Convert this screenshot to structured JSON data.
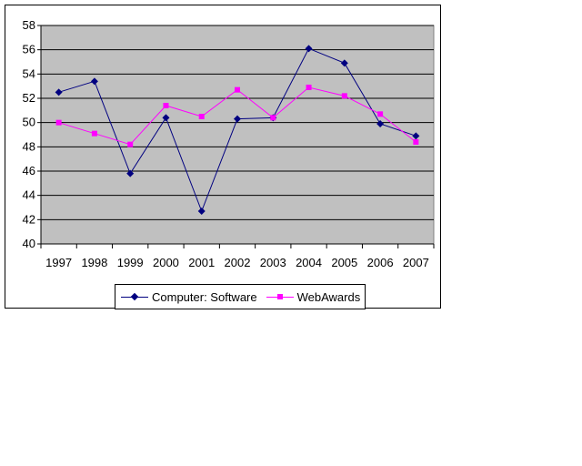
{
  "chart_data": {
    "type": "line",
    "categories": [
      "1997",
      "1998",
      "1999",
      "2000",
      "2001",
      "2002",
      "2003",
      "2004",
      "2005",
      "2006",
      "2007"
    ],
    "ylim": [
      40,
      58
    ],
    "yticks": [
      40,
      42,
      44,
      46,
      48,
      50,
      52,
      54,
      56,
      58
    ],
    "grid": true,
    "plot_background": "#c0c0c0",
    "legend_position": "bottom",
    "series": [
      {
        "name": "Computer: Software",
        "color": "#000080",
        "marker": "diamond",
        "values": [
          52.5,
          53.4,
          45.8,
          50.4,
          42.7,
          50.3,
          50.4,
          56.1,
          54.9,
          49.9,
          48.9
        ]
      },
      {
        "name": "WebAwards",
        "color": "#ff00ff",
        "marker": "square",
        "values": [
          50.0,
          49.1,
          48.2,
          51.4,
          50.5,
          52.7,
          50.4,
          52.9,
          52.2,
          50.7,
          48.4
        ]
      }
    ]
  }
}
